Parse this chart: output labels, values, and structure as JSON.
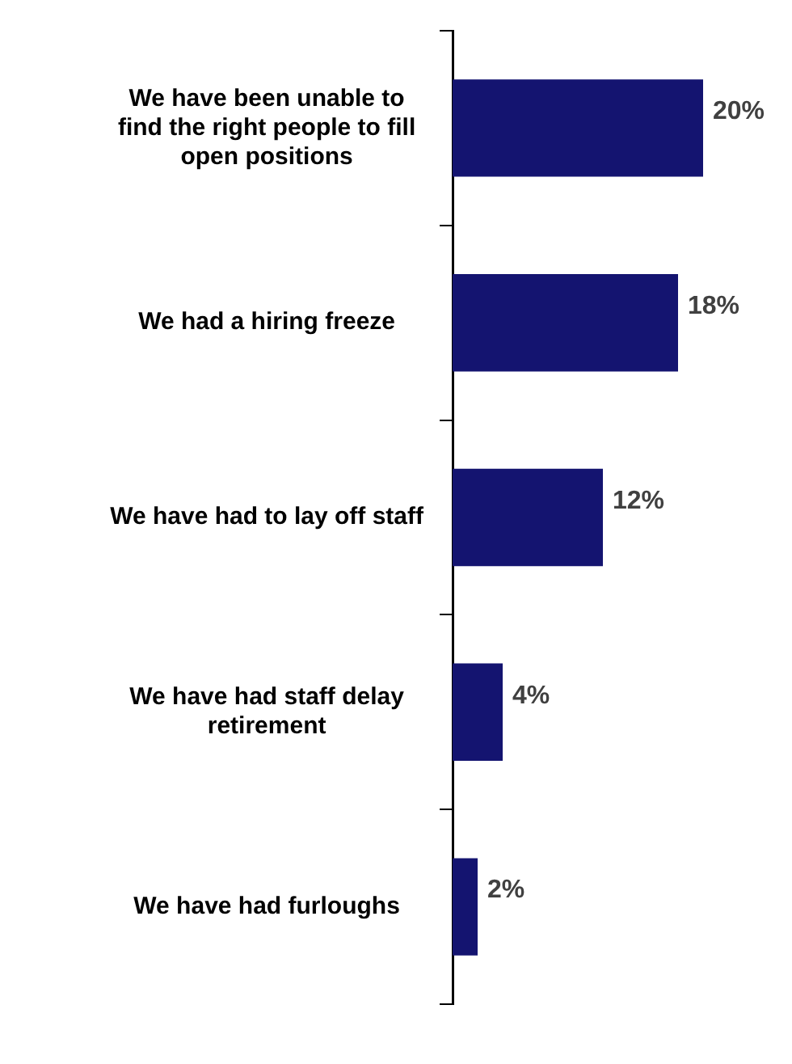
{
  "chart_data": {
    "type": "bar",
    "orientation": "horizontal",
    "categories": [
      "We have been unable to find the right people to fill open positions",
      "We had a hiring freeze",
      "We have had to lay off staff",
      "We have had staff delay retirement",
      "We have had furloughs"
    ],
    "values": [
      20,
      18,
      12,
      4,
      2
    ],
    "value_labels": [
      "20%",
      "18%",
      "12%",
      "4%",
      "2%"
    ],
    "color": "#141470",
    "tick_labels": "y",
    "grid": false,
    "legend": false
  }
}
